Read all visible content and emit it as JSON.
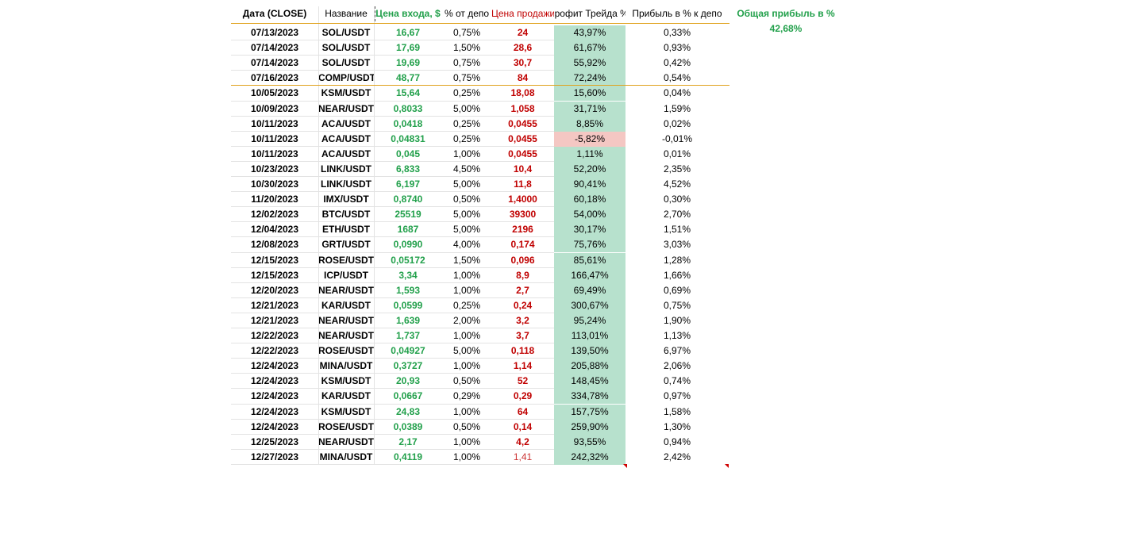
{
  "headers": {
    "date": "Дата (CLOSE)",
    "name": "Название",
    "entry": "Цена входа, $",
    "deposit": "% от депо",
    "sell": "Цена продажи",
    "profit": "Профит Трейда %",
    "deposit_profit": "Прибыль в % к депо"
  },
  "total": {
    "label": "Общая прибыль в %",
    "value": "42,68%"
  },
  "colors": {
    "green_text": "#22a04b",
    "red_text": "#c00000",
    "profit_fill": "#b7e1cd",
    "loss_fill": "#f4c7c3",
    "separator": "#e0a21d"
  },
  "rows": [
    {
      "date": "07/13/2023",
      "name": "SOL/USDT",
      "entry": "16,67",
      "dep": "0,75%",
      "sell": "24",
      "profit": "43,97%",
      "dp": "0,33%"
    },
    {
      "date": "07/14/2023",
      "name": "SOL/USDT",
      "entry": "17,69",
      "dep": "1,50%",
      "sell": "28,6",
      "profit": "61,67%",
      "dp": "0,93%"
    },
    {
      "date": "07/14/2023",
      "name": "SOL/USDT",
      "entry": "19,69",
      "dep": "0,75%",
      "sell": "30,7",
      "profit": "55,92%",
      "dp": "0,42%"
    },
    {
      "date": "07/16/2023",
      "name": "COMP/USDT",
      "entry": "48,77",
      "dep": "0,75%",
      "sell": "84",
      "profit": "72,24%",
      "dp": "0,54%"
    },
    {
      "date": "10/05/2023",
      "name": "KSM/USDT",
      "entry": "15,64",
      "dep": "0,25%",
      "sell": "18,08",
      "profit": "15,60%",
      "dp": "0,04%"
    },
    {
      "date": "10/09/2023",
      "name": "NEAR/USDT",
      "entry": "0,8033",
      "dep": "5,00%",
      "sell": "1,058",
      "profit": "31,71%",
      "dp": "1,59%"
    },
    {
      "date": "10/11/2023",
      "name": "ACA/USDT",
      "entry": "0,0418",
      "dep": "0,25%",
      "sell": "0,0455",
      "profit": "8,85%",
      "dp": "0,02%"
    },
    {
      "date": "10/11/2023",
      "name": "ACA/USDT",
      "entry": "0,04831",
      "dep": "0,25%",
      "sell": "0,0455",
      "profit": "-5,82%",
      "dp": "-0,01%",
      "loss": true
    },
    {
      "date": "10/11/2023",
      "name": "ACA/USDT",
      "entry": "0,045",
      "dep": "1,00%",
      "sell": "0,0455",
      "profit": "1,11%",
      "dp": "0,01%"
    },
    {
      "date": "10/23/2023",
      "name": "LINK/USDT",
      "entry": "6,833",
      "dep": "4,50%",
      "sell": "10,4",
      "profit": "52,20%",
      "dp": "2,35%"
    },
    {
      "date": "10/30/2023",
      "name": "LINK/USDT",
      "entry": "6,197",
      "dep": "5,00%",
      "sell": "11,8",
      "profit": "90,41%",
      "dp": "4,52%"
    },
    {
      "date": "11/20/2023",
      "name": "IMX/USDT",
      "entry": "0,8740",
      "dep": "0,50%",
      "sell": "1,4000",
      "profit": "60,18%",
      "dp": "0,30%"
    },
    {
      "date": "12/02/2023",
      "name": "BTC/USDT",
      "entry": "25519",
      "dep": "5,00%",
      "sell": "39300",
      "profit": "54,00%",
      "dp": "2,70%"
    },
    {
      "date": "12/04/2023",
      "name": "ETH/USDT",
      "entry": "1687",
      "dep": "5,00%",
      "sell": "2196",
      "profit": "30,17%",
      "dp": "1,51%"
    },
    {
      "date": "12/08/2023",
      "name": "GRT/USDT",
      "entry": "0,0990",
      "dep": "4,00%",
      "sell": "0,174",
      "profit": "75,76%",
      "dp": "3,03%"
    },
    {
      "date": "12/15/2023",
      "name": "ROSE/USDT",
      "entry": "0,05172",
      "dep": "1,50%",
      "sell": "0,096",
      "profit": "85,61%",
      "dp": "1,28%"
    },
    {
      "date": "12/15/2023",
      "name": "ICP/USDT",
      "entry": "3,34",
      "dep": "1,00%",
      "sell": "8,9",
      "profit": "166,47%",
      "dp": "1,66%"
    },
    {
      "date": "12/20/2023",
      "name": "NEAR/USDT",
      "entry": "1,593",
      "dep": "1,00%",
      "sell": "2,7",
      "profit": "69,49%",
      "dp": "0,69%"
    },
    {
      "date": "12/21/2023",
      "name": "KAR/USDT",
      "entry": "0,0599",
      "dep": "0,25%",
      "sell": "0,24",
      "profit": "300,67%",
      "dp": "0,75%"
    },
    {
      "date": "12/21/2023",
      "name": "NEAR/USDT",
      "entry": "1,639",
      "dep": "2,00%",
      "sell": "3,2",
      "profit": "95,24%",
      "dp": "1,90%"
    },
    {
      "date": "12/22/2023",
      "name": "NEAR/USDT",
      "entry": "1,737",
      "dep": "1,00%",
      "sell": "3,7",
      "profit": "113,01%",
      "dp": "1,13%"
    },
    {
      "date": "12/22/2023",
      "name": "ROSE/USDT",
      "entry": "0,04927",
      "dep": "5,00%",
      "sell": "0,118",
      "profit": "139,50%",
      "dp": "6,97%"
    },
    {
      "date": "12/24/2023",
      "name": "MINA/USDT",
      "entry": "0,3727",
      "dep": "1,00%",
      "sell": "1,14",
      "profit": "205,88%",
      "dp": "2,06%"
    },
    {
      "date": "12/24/2023",
      "name": "KSM/USDT",
      "entry": "20,93",
      "dep": "0,50%",
      "sell": "52",
      "profit": "148,45%",
      "dp": "0,74%"
    },
    {
      "date": "12/24/2023",
      "name": "KAR/USDT",
      "entry": "0,0667",
      "dep": "0,29%",
      "sell": "0,29",
      "profit": "334,78%",
      "dp": "0,97%"
    },
    {
      "date": "12/24/2023",
      "name": "KSM/USDT",
      "entry": "24,83",
      "dep": "1,00%",
      "sell": "64",
      "profit": "157,75%",
      "dp": "1,58%"
    },
    {
      "date": "12/24/2023",
      "name": "ROSE/USDT",
      "entry": "0,0389",
      "dep": "0,50%",
      "sell": "0,14",
      "profit": "259,90%",
      "dp": "1,30%"
    },
    {
      "date": "12/25/2023",
      "name": "NEAR/USDT",
      "entry": "2,17",
      "dep": "1,00%",
      "sell": "4,2",
      "profit": "93,55%",
      "dp": "0,94%"
    },
    {
      "date": "12/27/2023",
      "name": "MINA/USDT",
      "entry": "0,4119",
      "dep": "1,00%",
      "sell": "1,41",
      "profit": "242,32%",
      "dp": "2,42%",
      "sell_light": true
    }
  ]
}
